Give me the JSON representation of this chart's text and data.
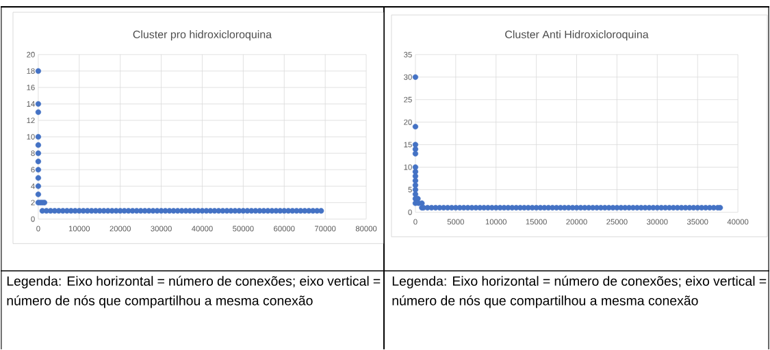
{
  "chart_data": [
    {
      "type": "scatter",
      "title": "Cluster pro hidroxicloroquina",
      "xlim": [
        0,
        80000
      ],
      "ylim": [
        0,
        20
      ],
      "xticks": [
        0,
        10000,
        20000,
        30000,
        40000,
        50000,
        60000,
        70000,
        80000
      ],
      "yticks": [
        0,
        2,
        4,
        6,
        8,
        10,
        12,
        14,
        16,
        18,
        20
      ],
      "grid": true,
      "marker": "circle",
      "series": [
        {
          "color": "#4472c4",
          "x": [
            0,
            0,
            0,
            0,
            0,
            0,
            0,
            0,
            0,
            0,
            0,
            0,
            500,
            1000,
            1500,
            1000,
            2000,
            3000,
            4000,
            5000,
            6000,
            7000,
            8000,
            9000,
            10000,
            11000,
            12000,
            13000,
            14000,
            15000,
            16000,
            17000,
            18000,
            19000,
            20000,
            21000,
            22000,
            23000,
            24000,
            25000,
            26000,
            27000,
            28000,
            29000,
            30000,
            31000,
            32000,
            33000,
            34000,
            35000,
            36000,
            37000,
            38000,
            39000,
            40000,
            41000,
            42000,
            43000,
            44000,
            45000,
            46000,
            47000,
            48000,
            49000,
            50000,
            51000,
            52000,
            53000,
            54000,
            55000,
            56000,
            57000,
            58000,
            59000,
            60000,
            61000,
            62000,
            63000,
            64000,
            65000,
            66000,
            67000,
            68000,
            69000
          ],
          "values": [
            18,
            14,
            13,
            10,
            9,
            8,
            7,
            6,
            5,
            4,
            3,
            2,
            2,
            2,
            2,
            1,
            1,
            1,
            1,
            1,
            1,
            1,
            1,
            1,
            1,
            1,
            1,
            1,
            1,
            1,
            1,
            1,
            1,
            1,
            1,
            1,
            1,
            1,
            1,
            1,
            1,
            1,
            1,
            1,
            1,
            1,
            1,
            1,
            1,
            1,
            1,
            1,
            1,
            1,
            1,
            1,
            1,
            1,
            1,
            1,
            1,
            1,
            1,
            1,
            1,
            1,
            1,
            1,
            1,
            1,
            1,
            1,
            1,
            1,
            1,
            1,
            1,
            1,
            1,
            1,
            1,
            1,
            1,
            1
          ]
        }
      ],
      "annotations": [
        "Legenda: Eixo horizontal = número de conexões; eixo vertical = número de nós que compartilhou a mesma conexão"
      ]
    },
    {
      "type": "scatter",
      "title": "Cluster Anti Hidroxicloroquina",
      "xlim": [
        0,
        40000
      ],
      "ylim": [
        0,
        35
      ],
      "xticks": [
        0,
        5000,
        10000,
        15000,
        20000,
        25000,
        30000,
        35000,
        40000
      ],
      "yticks": [
        0,
        5,
        10,
        15,
        20,
        25,
        30,
        35
      ],
      "grid": true,
      "marker": "circle",
      "series": [
        {
          "color": "#4472c4",
          "x": [
            0,
            0,
            0,
            0,
            0,
            0,
            0,
            0,
            0,
            0,
            0,
            0,
            0,
            0,
            300,
            400,
            800,
            800,
            1000,
            1500,
            2000,
            2500,
            3000,
            3500,
            4000,
            4500,
            5000,
            5500,
            6000,
            6500,
            7000,
            7500,
            8000,
            8500,
            9000,
            9500,
            10000,
            10500,
            11000,
            11500,
            12000,
            12500,
            13000,
            13500,
            14000,
            14500,
            15000,
            15500,
            16000,
            16500,
            17000,
            17500,
            18000,
            18500,
            19000,
            19500,
            20000,
            20500,
            21000,
            21500,
            22000,
            22500,
            23000,
            23500,
            24000,
            24500,
            25000,
            25500,
            26000,
            26500,
            27000,
            27500,
            28000,
            28500,
            29000,
            29500,
            30000,
            30500,
            31000,
            31500,
            32000,
            32500,
            33000,
            33500,
            34000,
            34500,
            35000,
            35500,
            36000,
            36500,
            37000,
            37500,
            37800
          ],
          "values": [
            30,
            19,
            15,
            14,
            13,
            10,
            9,
            8,
            7,
            6,
            5,
            4,
            3,
            2,
            3,
            2,
            2,
            1,
            1,
            1,
            1,
            1,
            1,
            1,
            1,
            1,
            1,
            1,
            1,
            1,
            1,
            1,
            1,
            1,
            1,
            1,
            1,
            1,
            1,
            1,
            1,
            1,
            1,
            1,
            1,
            1,
            1,
            1,
            1,
            1,
            1,
            1,
            1,
            1,
            1,
            1,
            1,
            1,
            1,
            1,
            1,
            1,
            1,
            1,
            1,
            1,
            1,
            1,
            1,
            1,
            1,
            1,
            1,
            1,
            1,
            1,
            1,
            1,
            1,
            1,
            1,
            1,
            1,
            1,
            1,
            1,
            1,
            1,
            1,
            1,
            1,
            1,
            1
          ]
        }
      ],
      "annotations": [
        "Legenda: Eixo horizontal = número de conexões; eixo vertical = número de nós que compartilhou a mesma conexão"
      ]
    }
  ]
}
